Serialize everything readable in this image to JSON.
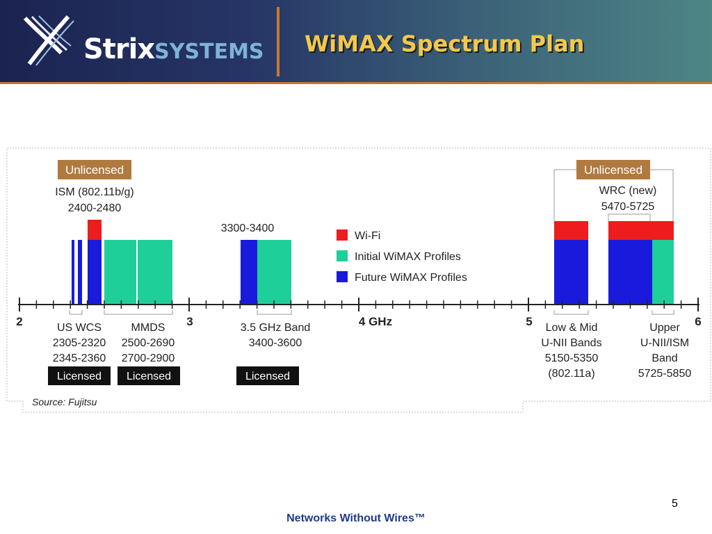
{
  "header": {
    "logo_text_1": "Strix",
    "logo_text_2": "SYSTEMS",
    "title": "WiMAX Spectrum Plan"
  },
  "diagram": {
    "axis_ticks": [
      "2",
      "3",
      "4 GHz",
      "5",
      "6"
    ],
    "unlicensed_label": "Unlicensed",
    "licensed_label": "Licensed",
    "ism_name": "ISM (802.11b/g)",
    "ism_range": "2400-2480",
    "band_3300_label": "3300-3400",
    "wrc_name": "WRC (new)",
    "wrc_range": "5470-5725",
    "legend": [
      {
        "label": "Wi-Fi",
        "color": "#ee1c1c"
      },
      {
        "label": "Initial WiMAX Profiles",
        "color": "#1fcf9a"
      },
      {
        "label": "Future WiMAX Profiles",
        "color": "#1a1adc"
      }
    ],
    "bottom_labels": {
      "us_wcs": [
        "US WCS",
        "2305-2320",
        "2345-2360"
      ],
      "mmds": [
        "MMDS",
        "2500-2690",
        "2700-2900"
      ],
      "band_35": [
        "3.5 GHz Band",
        "3400-3600"
      ],
      "unii_low_mid": [
        "Low & Mid",
        "U-NII Bands",
        "5150-5350",
        "(802.11a)"
      ],
      "unii_upper": [
        "Upper",
        "U-NII/ISM",
        "Band",
        "5725-5850"
      ]
    },
    "source": "Source: Fujitsu"
  },
  "footer": {
    "page_number": "5",
    "tagline": "Networks Without Wires™"
  }
}
